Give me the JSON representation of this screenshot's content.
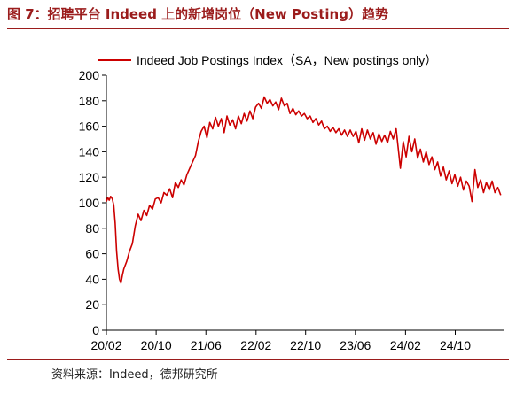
{
  "figure": {
    "title": "图 7：招聘平台 Indeed 上的新增岗位（New Posting）趋势",
    "source": "资料来源：Indeed，德邦研究所"
  },
  "colors": {
    "accent": "#9b1c1c",
    "series": "#cc0000"
  },
  "chart_data": {
    "type": "line",
    "title": "",
    "xlabel": "",
    "ylabel": "",
    "legend_position": "top",
    "grid": false,
    "ylim": [
      0,
      200
    ],
    "xlim": [
      "2020-02",
      "2025-05"
    ],
    "y_ticks": [
      "0",
      "20",
      "40",
      "60",
      "80",
      "100",
      "120",
      "140",
      "160",
      "180",
      "200"
    ],
    "x_ticks": [
      "20/02",
      "20/10",
      "21/06",
      "22/02",
      "22/10",
      "23/06",
      "24/02",
      "24/10"
    ],
    "x_tick_dates": [
      "2020-02",
      "2020-10",
      "2021-06",
      "2022-02",
      "2022-10",
      "2023-06",
      "2024-02",
      "2024-10"
    ],
    "series": [
      {
        "name": "Indeed Job Postings Index（SA，New postings only）",
        "points": [
          [
            "2020-02-01",
            101
          ],
          [
            "2020-02-08",
            104
          ],
          [
            "2020-02-15",
            102
          ],
          [
            "2020-02-22",
            105
          ],
          [
            "2020-03-01",
            103
          ],
          [
            "2020-03-08",
            98
          ],
          [
            "2020-03-15",
            84
          ],
          [
            "2020-03-22",
            62
          ],
          [
            "2020-03-29",
            48
          ],
          [
            "2020-04-05",
            40
          ],
          [
            "2020-04-12",
            37
          ],
          [
            "2020-04-19",
            43
          ],
          [
            "2020-04-26",
            48
          ],
          [
            "2020-05-10",
            54
          ],
          [
            "2020-05-24",
            62
          ],
          [
            "2020-06-07",
            68
          ],
          [
            "2020-06-21",
            82
          ],
          [
            "2020-07-05",
            91
          ],
          [
            "2020-07-19",
            86
          ],
          [
            "2020-08-02",
            94
          ],
          [
            "2020-08-16",
            90
          ],
          [
            "2020-08-30",
            98
          ],
          [
            "2020-09-13",
            95
          ],
          [
            "2020-09-27",
            103
          ],
          [
            "2020-10-11",
            104
          ],
          [
            "2020-10-25",
            100
          ],
          [
            "2020-11-08",
            108
          ],
          [
            "2020-11-22",
            106
          ],
          [
            "2020-12-06",
            111
          ],
          [
            "2020-12-20",
            104
          ],
          [
            "2021-01-03",
            116
          ],
          [
            "2021-01-17",
            112
          ],
          [
            "2021-01-31",
            118
          ],
          [
            "2021-02-14",
            114
          ],
          [
            "2021-02-28",
            122
          ],
          [
            "2021-03-14",
            127
          ],
          [
            "2021-03-28",
            132
          ],
          [
            "2021-04-11",
            137
          ],
          [
            "2021-04-25",
            148
          ],
          [
            "2021-05-09",
            156
          ],
          [
            "2021-05-23",
            160
          ],
          [
            "2021-06-06",
            151
          ],
          [
            "2021-06-20",
            163
          ],
          [
            "2021-07-04",
            158
          ],
          [
            "2021-07-18",
            167
          ],
          [
            "2021-08-01",
            160
          ],
          [
            "2021-08-15",
            166
          ],
          [
            "2021-08-29",
            155
          ],
          [
            "2021-09-12",
            168
          ],
          [
            "2021-09-26",
            161
          ],
          [
            "2021-10-10",
            165
          ],
          [
            "2021-10-24",
            158
          ],
          [
            "2021-11-07",
            168
          ],
          [
            "2021-11-21",
            162
          ],
          [
            "2021-12-05",
            170
          ],
          [
            "2021-12-19",
            164
          ],
          [
            "2022-01-02",
            172
          ],
          [
            "2022-01-16",
            166
          ],
          [
            "2022-01-30",
            175
          ],
          [
            "2022-02-13",
            178
          ],
          [
            "2022-02-27",
            174
          ],
          [
            "2022-03-13",
            183
          ],
          [
            "2022-03-27",
            178
          ],
          [
            "2022-04-10",
            181
          ],
          [
            "2022-04-24",
            176
          ],
          [
            "2022-05-08",
            179
          ],
          [
            "2022-05-22",
            173
          ],
          [
            "2022-06-05",
            182
          ],
          [
            "2022-06-19",
            176
          ],
          [
            "2022-07-03",
            178
          ],
          [
            "2022-07-17",
            170
          ],
          [
            "2022-07-31",
            174
          ],
          [
            "2022-08-14",
            169
          ],
          [
            "2022-08-28",
            172
          ],
          [
            "2022-09-11",
            168
          ],
          [
            "2022-09-25",
            170
          ],
          [
            "2022-10-09",
            166
          ],
          [
            "2022-10-23",
            168
          ],
          [
            "2022-11-06",
            163
          ],
          [
            "2022-11-20",
            166
          ],
          [
            "2022-12-04",
            161
          ],
          [
            "2022-12-18",
            164
          ],
          [
            "2023-01-01",
            158
          ],
          [
            "2023-01-15",
            160
          ],
          [
            "2023-01-29",
            156
          ],
          [
            "2023-02-12",
            159
          ],
          [
            "2023-02-26",
            155
          ],
          [
            "2023-03-12",
            158
          ],
          [
            "2023-03-26",
            153
          ],
          [
            "2023-04-09",
            157
          ],
          [
            "2023-04-23",
            152
          ],
          [
            "2023-05-07",
            157
          ],
          [
            "2023-05-21",
            152
          ],
          [
            "2023-06-04",
            156
          ],
          [
            "2023-06-18",
            147
          ],
          [
            "2023-07-02",
            158
          ],
          [
            "2023-07-16",
            149
          ],
          [
            "2023-07-30",
            157
          ],
          [
            "2023-08-13",
            150
          ],
          [
            "2023-08-27",
            155
          ],
          [
            "2023-09-10",
            146
          ],
          [
            "2023-09-24",
            154
          ],
          [
            "2023-10-08",
            148
          ],
          [
            "2023-10-22",
            153
          ],
          [
            "2023-11-05",
            147
          ],
          [
            "2023-11-19",
            156
          ],
          [
            "2023-12-03",
            150
          ],
          [
            "2023-12-17",
            158
          ],
          [
            "2024-01-07",
            127
          ],
          [
            "2024-01-21",
            148
          ],
          [
            "2024-02-04",
            136
          ],
          [
            "2024-02-18",
            152
          ],
          [
            "2024-03-03",
            140
          ],
          [
            "2024-03-17",
            150
          ],
          [
            "2024-03-31",
            135
          ],
          [
            "2024-04-14",
            142
          ],
          [
            "2024-04-28",
            132
          ],
          [
            "2024-05-12",
            140
          ],
          [
            "2024-05-26",
            130
          ],
          [
            "2024-06-09",
            136
          ],
          [
            "2024-06-23",
            126
          ],
          [
            "2024-07-07",
            132
          ],
          [
            "2024-07-21",
            121
          ],
          [
            "2024-08-04",
            128
          ],
          [
            "2024-08-18",
            118
          ],
          [
            "2024-09-01",
            125
          ],
          [
            "2024-09-15",
            115
          ],
          [
            "2024-09-29",
            122
          ],
          [
            "2024-10-13",
            113
          ],
          [
            "2024-10-27",
            120
          ],
          [
            "2024-11-10",
            110
          ],
          [
            "2024-11-24",
            117
          ],
          [
            "2024-12-08",
            113
          ],
          [
            "2024-12-22",
            101
          ],
          [
            "2025-01-05",
            126
          ],
          [
            "2025-01-19",
            112
          ],
          [
            "2025-02-02",
            118
          ],
          [
            "2025-02-16",
            108
          ],
          [
            "2025-03-02",
            116
          ],
          [
            "2025-03-16",
            110
          ],
          [
            "2025-03-30",
            117
          ],
          [
            "2025-04-13",
            108
          ],
          [
            "2025-04-27",
            112
          ],
          [
            "2025-05-11",
            106
          ]
        ]
      }
    ]
  }
}
